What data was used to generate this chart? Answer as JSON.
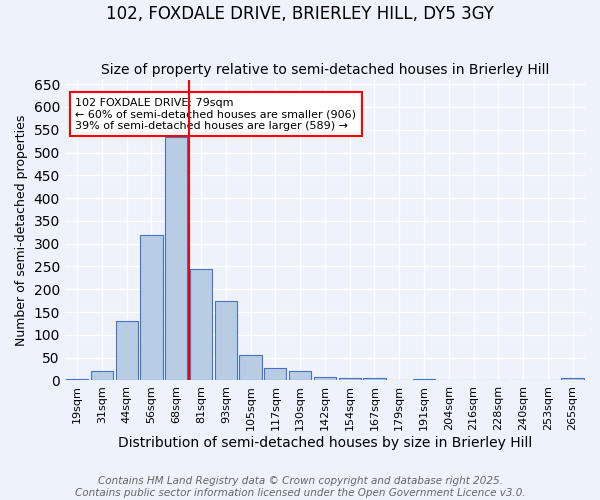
{
  "title": "102, FOXDALE DRIVE, BRIERLEY HILL, DY5 3GY",
  "subtitle": "Size of property relative to semi-detached houses in Brierley Hill",
  "xlabel": "Distribution of semi-detached houses by size in Brierley Hill",
  "ylabel": "Number of semi-detached properties",
  "categories": [
    "19sqm",
    "31sqm",
    "44sqm",
    "56sqm",
    "68sqm",
    "81sqm",
    "93sqm",
    "105sqm",
    "117sqm",
    "130sqm",
    "142sqm",
    "154sqm",
    "167sqm",
    "179sqm",
    "191sqm",
    "204sqm",
    "216sqm",
    "228sqm",
    "240sqm",
    "253sqm",
    "265sqm"
  ],
  "values": [
    4,
    20,
    130,
    320,
    535,
    245,
    175,
    55,
    28,
    20,
    8,
    5,
    5,
    0,
    3,
    1,
    1,
    0,
    1,
    0,
    5
  ],
  "bar_color": "#b8cce4",
  "bar_edge_color": "#4472c4",
  "vline_color": "red",
  "vline_x": 4.5,
  "annotation_text": "102 FOXDALE DRIVE: 79sqm\n← 60% of semi-detached houses are smaller (906)\n39% of semi-detached houses are larger (589) →",
  "annotation_box_color": "white",
  "annotation_box_edge_color": "red",
  "ylim": [
    0,
    660
  ],
  "yticks": [
    0,
    50,
    100,
    150,
    200,
    250,
    300,
    350,
    400,
    450,
    500,
    550,
    600,
    650
  ],
  "background_color": "#eef2fb",
  "grid_color": "white",
  "footnote": "Contains HM Land Registry data © Crown copyright and database right 2025.\nContains public sector information licensed under the Open Government Licence v3.0.",
  "title_fontsize": 12,
  "subtitle_fontsize": 10,
  "xlabel_fontsize": 10,
  "ylabel_fontsize": 9,
  "footnote_fontsize": 7.5
}
